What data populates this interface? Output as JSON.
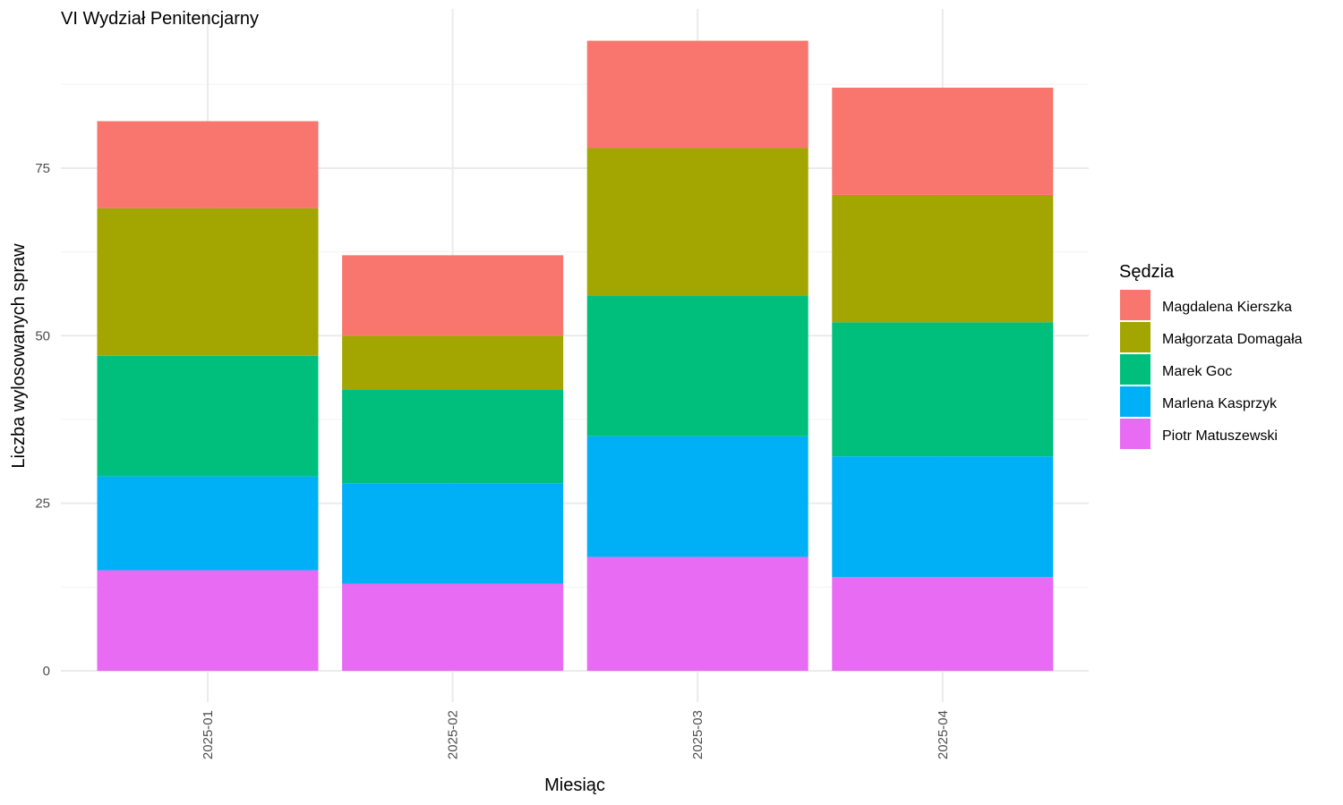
{
  "chart_data": {
    "type": "bar",
    "stacked": true,
    "title": "VI Wydział Penitencjarny",
    "xlabel": "Miesiąc",
    "ylabel": "Liczba wylosowanych spraw",
    "categories": [
      "2025-01",
      "2025-02",
      "2025-03",
      "2025-04"
    ],
    "ylim": [
      0,
      98
    ],
    "yticks": [
      0,
      25,
      50,
      75
    ],
    "grid": true,
    "legend": {
      "title": "Sędzia",
      "position": "right"
    },
    "series": [
      {
        "name": "Piotr Matuszewski",
        "color": "#E76BF3",
        "values": [
          15,
          13,
          17,
          14
        ]
      },
      {
        "name": "Marlena Kasprzyk",
        "color": "#00B0F6",
        "values": [
          14,
          15,
          18,
          18
        ]
      },
      {
        "name": "Marek Goc",
        "color": "#00BF7D",
        "values": [
          18,
          14,
          21,
          20
        ]
      },
      {
        "name": "Małgorzata Domagała",
        "color": "#A3A500",
        "values": [
          22,
          8,
          22,
          19
        ]
      },
      {
        "name": "Magdalena Kierszka",
        "color": "#F8766D",
        "values": [
          13,
          12,
          16,
          16
        ]
      }
    ],
    "legend_order": [
      "Magdalena Kierszka",
      "Małgorzata Domagała",
      "Marek Goc",
      "Marlena Kasprzyk",
      "Piotr Matuszewski"
    ]
  }
}
